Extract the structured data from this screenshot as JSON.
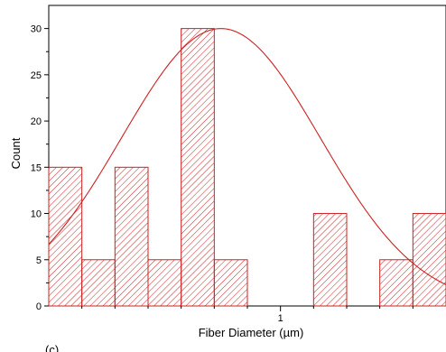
{
  "chart_data": {
    "type": "bar",
    "subtype": "histogram",
    "xlabel": "Fiber Diameter (µm)",
    "ylabel": "Count",
    "panel_label": "(c)",
    "x_tick_labels": [
      "1"
    ],
    "y_tick_labels": [
      "0",
      "5",
      "10",
      "15",
      "20",
      "25",
      "30"
    ],
    "ylim": [
      0,
      32.5
    ],
    "bins": [
      {
        "start": 0.3,
        "end": 0.4,
        "count": 15
      },
      {
        "start": 0.4,
        "end": 0.5,
        "count": 5
      },
      {
        "start": 0.5,
        "end": 0.6,
        "count": 15
      },
      {
        "start": 0.6,
        "end": 0.7,
        "count": 5
      },
      {
        "start": 0.7,
        "end": 0.8,
        "count": 30
      },
      {
        "start": 0.8,
        "end": 0.9,
        "count": 5
      },
      {
        "start": 0.9,
        "end": 1.0,
        "count": 0
      },
      {
        "start": 1.0,
        "end": 1.1,
        "count": 0
      },
      {
        "start": 1.1,
        "end": 1.2,
        "count": 10
      },
      {
        "start": 1.2,
        "end": 1.3,
        "count": 0
      },
      {
        "start": 1.3,
        "end": 1.4,
        "count": 5
      },
      {
        "start": 1.4,
        "end": 1.5,
        "count": 10
      }
    ],
    "fit_curve": {
      "type": "gaussian",
      "peak_x": 0.82,
      "peak_y": 30,
      "sigma": 0.3
    },
    "colors": {
      "bar": "#cc2222",
      "fit": "#cc2222",
      "axis": "#000000"
    },
    "grid": false,
    "legend": "none"
  }
}
